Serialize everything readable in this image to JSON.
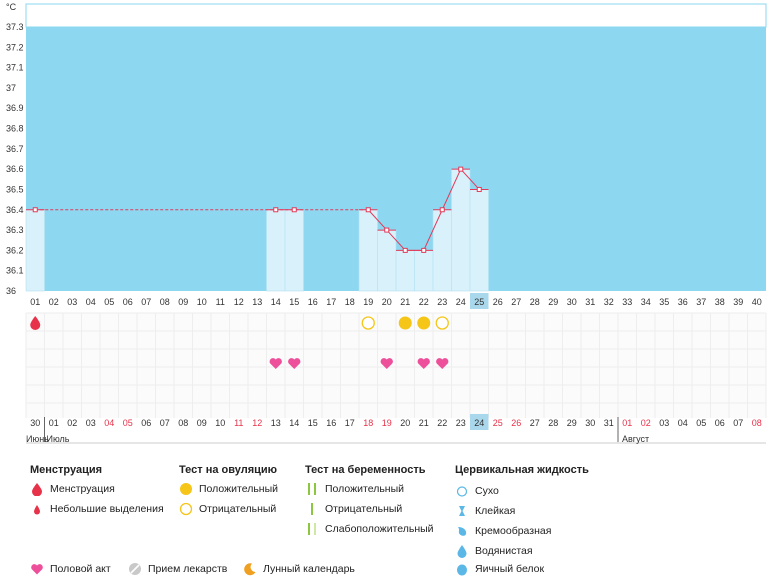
{
  "unit_label": "°C",
  "colors": {
    "plot_bg": "#8dd7f0",
    "bar_fill": "#d9f1fb",
    "line": "#e23b5a",
    "menstruation": "#e8324a",
    "ovulation": "#f5c518",
    "sex": "#ee4f9b",
    "pregnancy": "#8dc63f",
    "cervical": "#5bb7e6",
    "today": "#a9d7ec"
  },
  "chart_data": {
    "type": "line",
    "title": "",
    "ylabel": "°C",
    "ylim": [
      36,
      37.3
    ],
    "yticks": [
      "36",
      "36.1",
      "36.2",
      "36.3",
      "36.4",
      "36.5",
      "36.6",
      "36.7",
      "36.8",
      "36.9",
      "37",
      "37.1",
      "37.2",
      "37.3"
    ],
    "cycle_days": [
      "01",
      "02",
      "03",
      "04",
      "05",
      "06",
      "07",
      "08",
      "09",
      "10",
      "11",
      "12",
      "13",
      "14",
      "15",
      "16",
      "17",
      "18",
      "19",
      "20",
      "21",
      "22",
      "23",
      "24",
      "25",
      "26",
      "27",
      "28",
      "29",
      "30",
      "31",
      "32",
      "33",
      "34",
      "35",
      "36",
      "37",
      "38",
      "39",
      "40"
    ],
    "today_day": 25,
    "series": [
      {
        "points": [
          {
            "day": 1,
            "temp": 36.4
          },
          {
            "day": 14,
            "temp": 36.4
          },
          {
            "day": 15,
            "temp": 36.4
          },
          {
            "day": 19,
            "temp": 36.4
          },
          {
            "day": 20,
            "temp": 36.3
          },
          {
            "day": 21,
            "temp": 36.2
          },
          {
            "day": 22,
            "temp": 36.2
          },
          {
            "day": 23,
            "temp": 36.4
          },
          {
            "day": 24,
            "temp": 36.6
          },
          {
            "day": 25,
            "temp": 36.5
          }
        ]
      }
    ],
    "coverline": 36.4,
    "calendar_dates": [
      "30",
      "01",
      "02",
      "03",
      "04",
      "05",
      "06",
      "07",
      "08",
      "09",
      "10",
      "11",
      "12",
      "13",
      "14",
      "15",
      "16",
      "17",
      "18",
      "19",
      "20",
      "21",
      "22",
      "23",
      "24",
      "25",
      "26",
      "27",
      "28",
      "29",
      "30",
      "31",
      "01",
      "02",
      "03",
      "04",
      "05",
      "06",
      "07",
      "08"
    ],
    "weekend_dates": [
      4,
      5,
      11,
      12,
      18,
      19,
      25,
      26,
      32,
      33,
      39
    ],
    "today_date_index": 24,
    "months": [
      "Июнь",
      "Июль",
      "Август"
    ],
    "markers": {
      "menstruation_days": [
        1
      ],
      "ovulation_negative_days": [
        19,
        23
      ],
      "ovulation_positive_days": [
        21,
        22
      ],
      "sex_days": [
        14,
        15,
        20,
        22,
        23
      ]
    }
  },
  "legend": {
    "menstruation": {
      "title": "Менструация",
      "items": [
        "Менструация",
        "Небольшие выделения"
      ]
    },
    "ovulation": {
      "title": "Тест на овуляцию",
      "items": [
        "Положительный",
        "Отрицательный"
      ]
    },
    "pregnancy": {
      "title": "Тест на беременность",
      "items": [
        "Положительный",
        "Отрицательный",
        "Слабоположительный"
      ]
    },
    "cervical": {
      "title": "Цервикальная жидкость",
      "items": [
        "Сухо",
        "Клейкая",
        "Кремообразная",
        "Водянистая",
        "Яичный белок"
      ]
    },
    "bottom": [
      "Половой акт",
      "Прием лекарств",
      "Лунный календарь"
    ]
  }
}
